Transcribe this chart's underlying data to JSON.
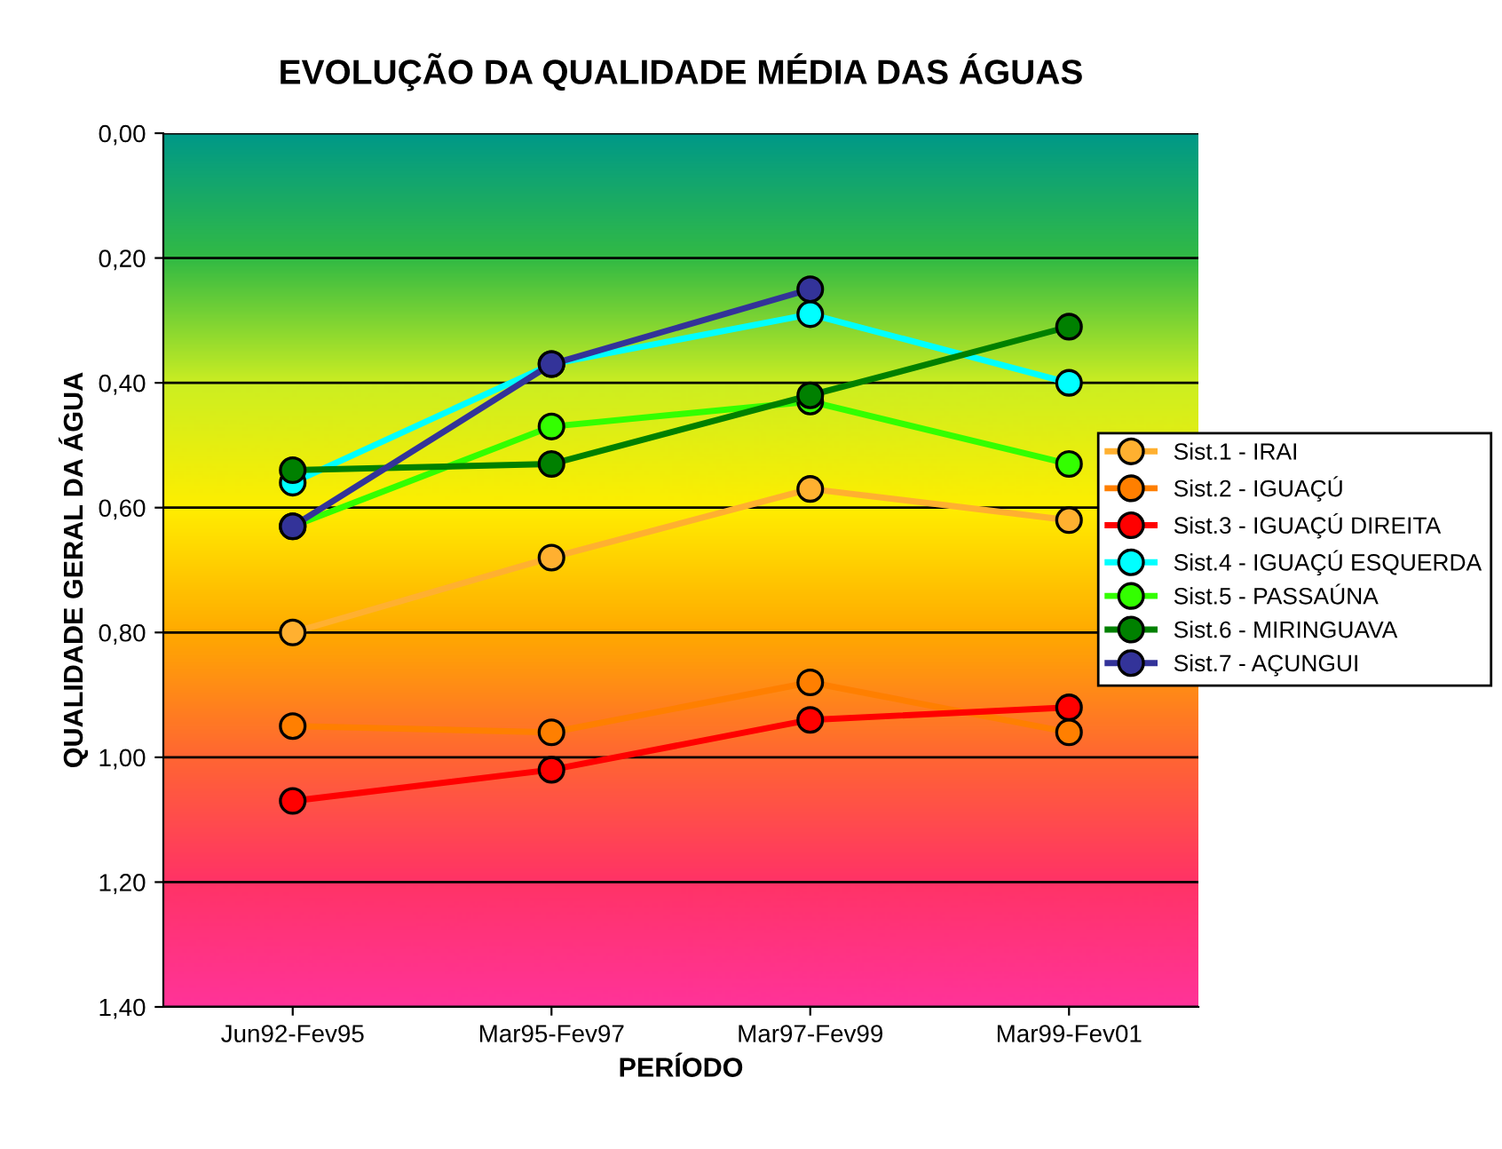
{
  "chart_data": {
    "type": "line",
    "title": "EVOLUÇÃO DA QUALIDADE MÉDIA DAS ÁGUAS",
    "xlabel": "PERÍODO",
    "ylabel": "QUALIDADE GERAL DA ÁGUA",
    "categories": [
      "Jun92-Fev95",
      "Mar95-Fev97",
      "Mar97-Fev99",
      "Mar99-Fev01"
    ],
    "series": [
      {
        "name": "Sist.1 - IRAI",
        "color": "#ffb030",
        "values": [
          0.8,
          0.68,
          0.57,
          0.62
        ]
      },
      {
        "name": "Sist.2 - IGUAÇÚ",
        "color": "#ff7f00",
        "values": [
          0.95,
          0.96,
          0.88,
          0.96
        ]
      },
      {
        "name": "Sist.3 - IGUAÇÚ DIREITA",
        "color": "#ff0000",
        "values": [
          1.07,
          1.02,
          0.94,
          0.92
        ]
      },
      {
        "name": "Sist.4 - IGUAÇÚ ESQUERDA",
        "color": "#00ffff",
        "values": [
          0.56,
          0.37,
          0.29,
          0.4
        ]
      },
      {
        "name": "Sist.5 - PASSAÚNA",
        "color": "#33ff00",
        "values": [
          0.63,
          0.47,
          0.43,
          0.53
        ]
      },
      {
        "name": "Sist.6 - MIRINGUAVA",
        "color": "#008000",
        "values": [
          0.54,
          0.53,
          0.42,
          0.31
        ]
      },
      {
        "name": "Sist.7 - AÇUNGUI",
        "color": "#333399",
        "values": [
          0.63,
          0.37,
          0.25,
          null
        ]
      }
    ],
    "ylim": [
      1.4,
      0.0
    ],
    "yticks": [
      {
        "value": 0.0,
        "label": "0,00"
      },
      {
        "value": 0.2,
        "label": "0,20"
      },
      {
        "value": 0.4,
        "label": "0,40"
      },
      {
        "value": 0.6,
        "label": "0,60"
      },
      {
        "value": 0.8,
        "label": "0,80"
      },
      {
        "value": 1.0,
        "label": "1,00"
      },
      {
        "value": 1.2,
        "label": "1,20"
      },
      {
        "value": 1.4,
        "label": "1,40"
      }
    ],
    "grid": "y",
    "legend": "right",
    "marker": "circle",
    "line_style": "solid"
  }
}
